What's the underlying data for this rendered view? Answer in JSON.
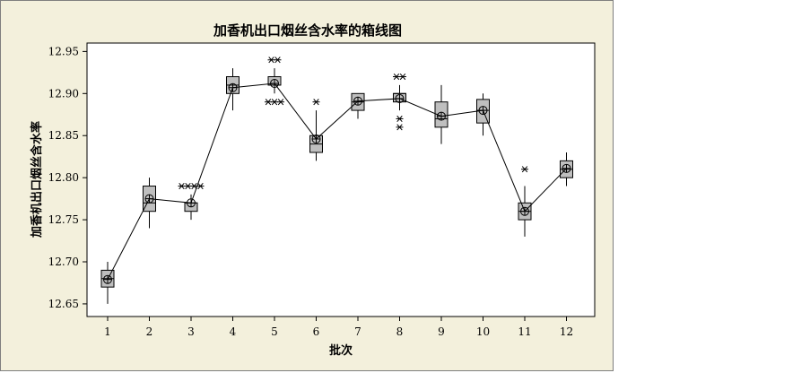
{
  "chart_data": {
    "type": "box",
    "title": "加香机出口烟丝含水率的箱线图",
    "xlabel": "批次",
    "ylabel": "加香机出口烟丝含水率",
    "categories": [
      "1",
      "2",
      "3",
      "4",
      "5",
      "6",
      "7",
      "8",
      "9",
      "10",
      "11",
      "12"
    ],
    "ylim": [
      12.635,
      12.96
    ],
    "yticks": [
      "12.65",
      "12.70",
      "12.75",
      "12.80",
      "12.85",
      "12.90",
      "12.95"
    ],
    "grid": false,
    "legend": "none",
    "box_color": "#bfbfbf",
    "background_color": "#f3f0dc",
    "plot_background": "#ffffff",
    "boxes": [
      {
        "batch": "1",
        "whisker_low": 12.65,
        "q1": 12.67,
        "median": 12.68,
        "q3": 12.69,
        "whisker_high": 12.7,
        "mean": 12.679,
        "outliers": []
      },
      {
        "batch": "2",
        "whisker_low": 12.74,
        "q1": 12.76,
        "median": 12.77,
        "q3": 12.79,
        "whisker_high": 12.8,
        "mean": 12.775,
        "outliers": []
      },
      {
        "batch": "3",
        "whisker_low": 12.75,
        "q1": 12.76,
        "median": 12.77,
        "q3": 12.77,
        "whisker_high": 12.78,
        "mean": 12.77,
        "outliers": [
          12.79,
          12.79,
          12.79,
          12.79
        ]
      },
      {
        "batch": "4",
        "whisker_low": 12.88,
        "q1": 12.9,
        "median": 12.91,
        "q3": 12.92,
        "whisker_high": 12.93,
        "mean": 12.907,
        "outliers": []
      },
      {
        "batch": "5",
        "whisker_low": 12.9,
        "q1": 12.91,
        "median": 12.91,
        "q3": 12.92,
        "whisker_high": 12.93,
        "mean": 12.912,
        "outliers": [
          12.94,
          12.94,
          12.89,
          12.89,
          12.89
        ]
      },
      {
        "batch": "6",
        "whisker_low": 12.82,
        "q1": 12.83,
        "median": 12.84,
        "q3": 12.85,
        "whisker_high": 12.88,
        "mean": 12.846,
        "outliers": [
          12.89
        ]
      },
      {
        "batch": "7",
        "whisker_low": 12.87,
        "q1": 12.88,
        "median": 12.89,
        "q3": 12.9,
        "whisker_high": 12.9,
        "mean": 12.891,
        "outliers": []
      },
      {
        "batch": "8",
        "whisker_low": 12.88,
        "q1": 12.89,
        "median": 12.9,
        "q3": 12.9,
        "whisker_high": 12.91,
        "mean": 12.894,
        "outliers": [
          12.92,
          12.92,
          12.87,
          12.86
        ]
      },
      {
        "batch": "9",
        "whisker_low": 12.84,
        "q1": 12.86,
        "median": 12.87,
        "q3": 12.89,
        "whisker_high": 12.91,
        "mean": 12.873,
        "outliers": []
      },
      {
        "batch": "10",
        "whisker_low": 12.85,
        "q1": 12.865,
        "median": 12.88,
        "q3": 12.893,
        "whisker_high": 12.9,
        "mean": 12.88,
        "outliers": []
      },
      {
        "batch": "11",
        "whisker_low": 12.73,
        "q1": 12.75,
        "median": 12.76,
        "q3": 12.77,
        "whisker_high": 12.79,
        "mean": 12.76,
        "outliers": [
          12.81
        ]
      },
      {
        "batch": "12",
        "whisker_low": 12.79,
        "q1": 12.8,
        "median": 12.81,
        "q3": 12.82,
        "whisker_high": 12.83,
        "mean": 12.811,
        "outliers": []
      }
    ]
  }
}
